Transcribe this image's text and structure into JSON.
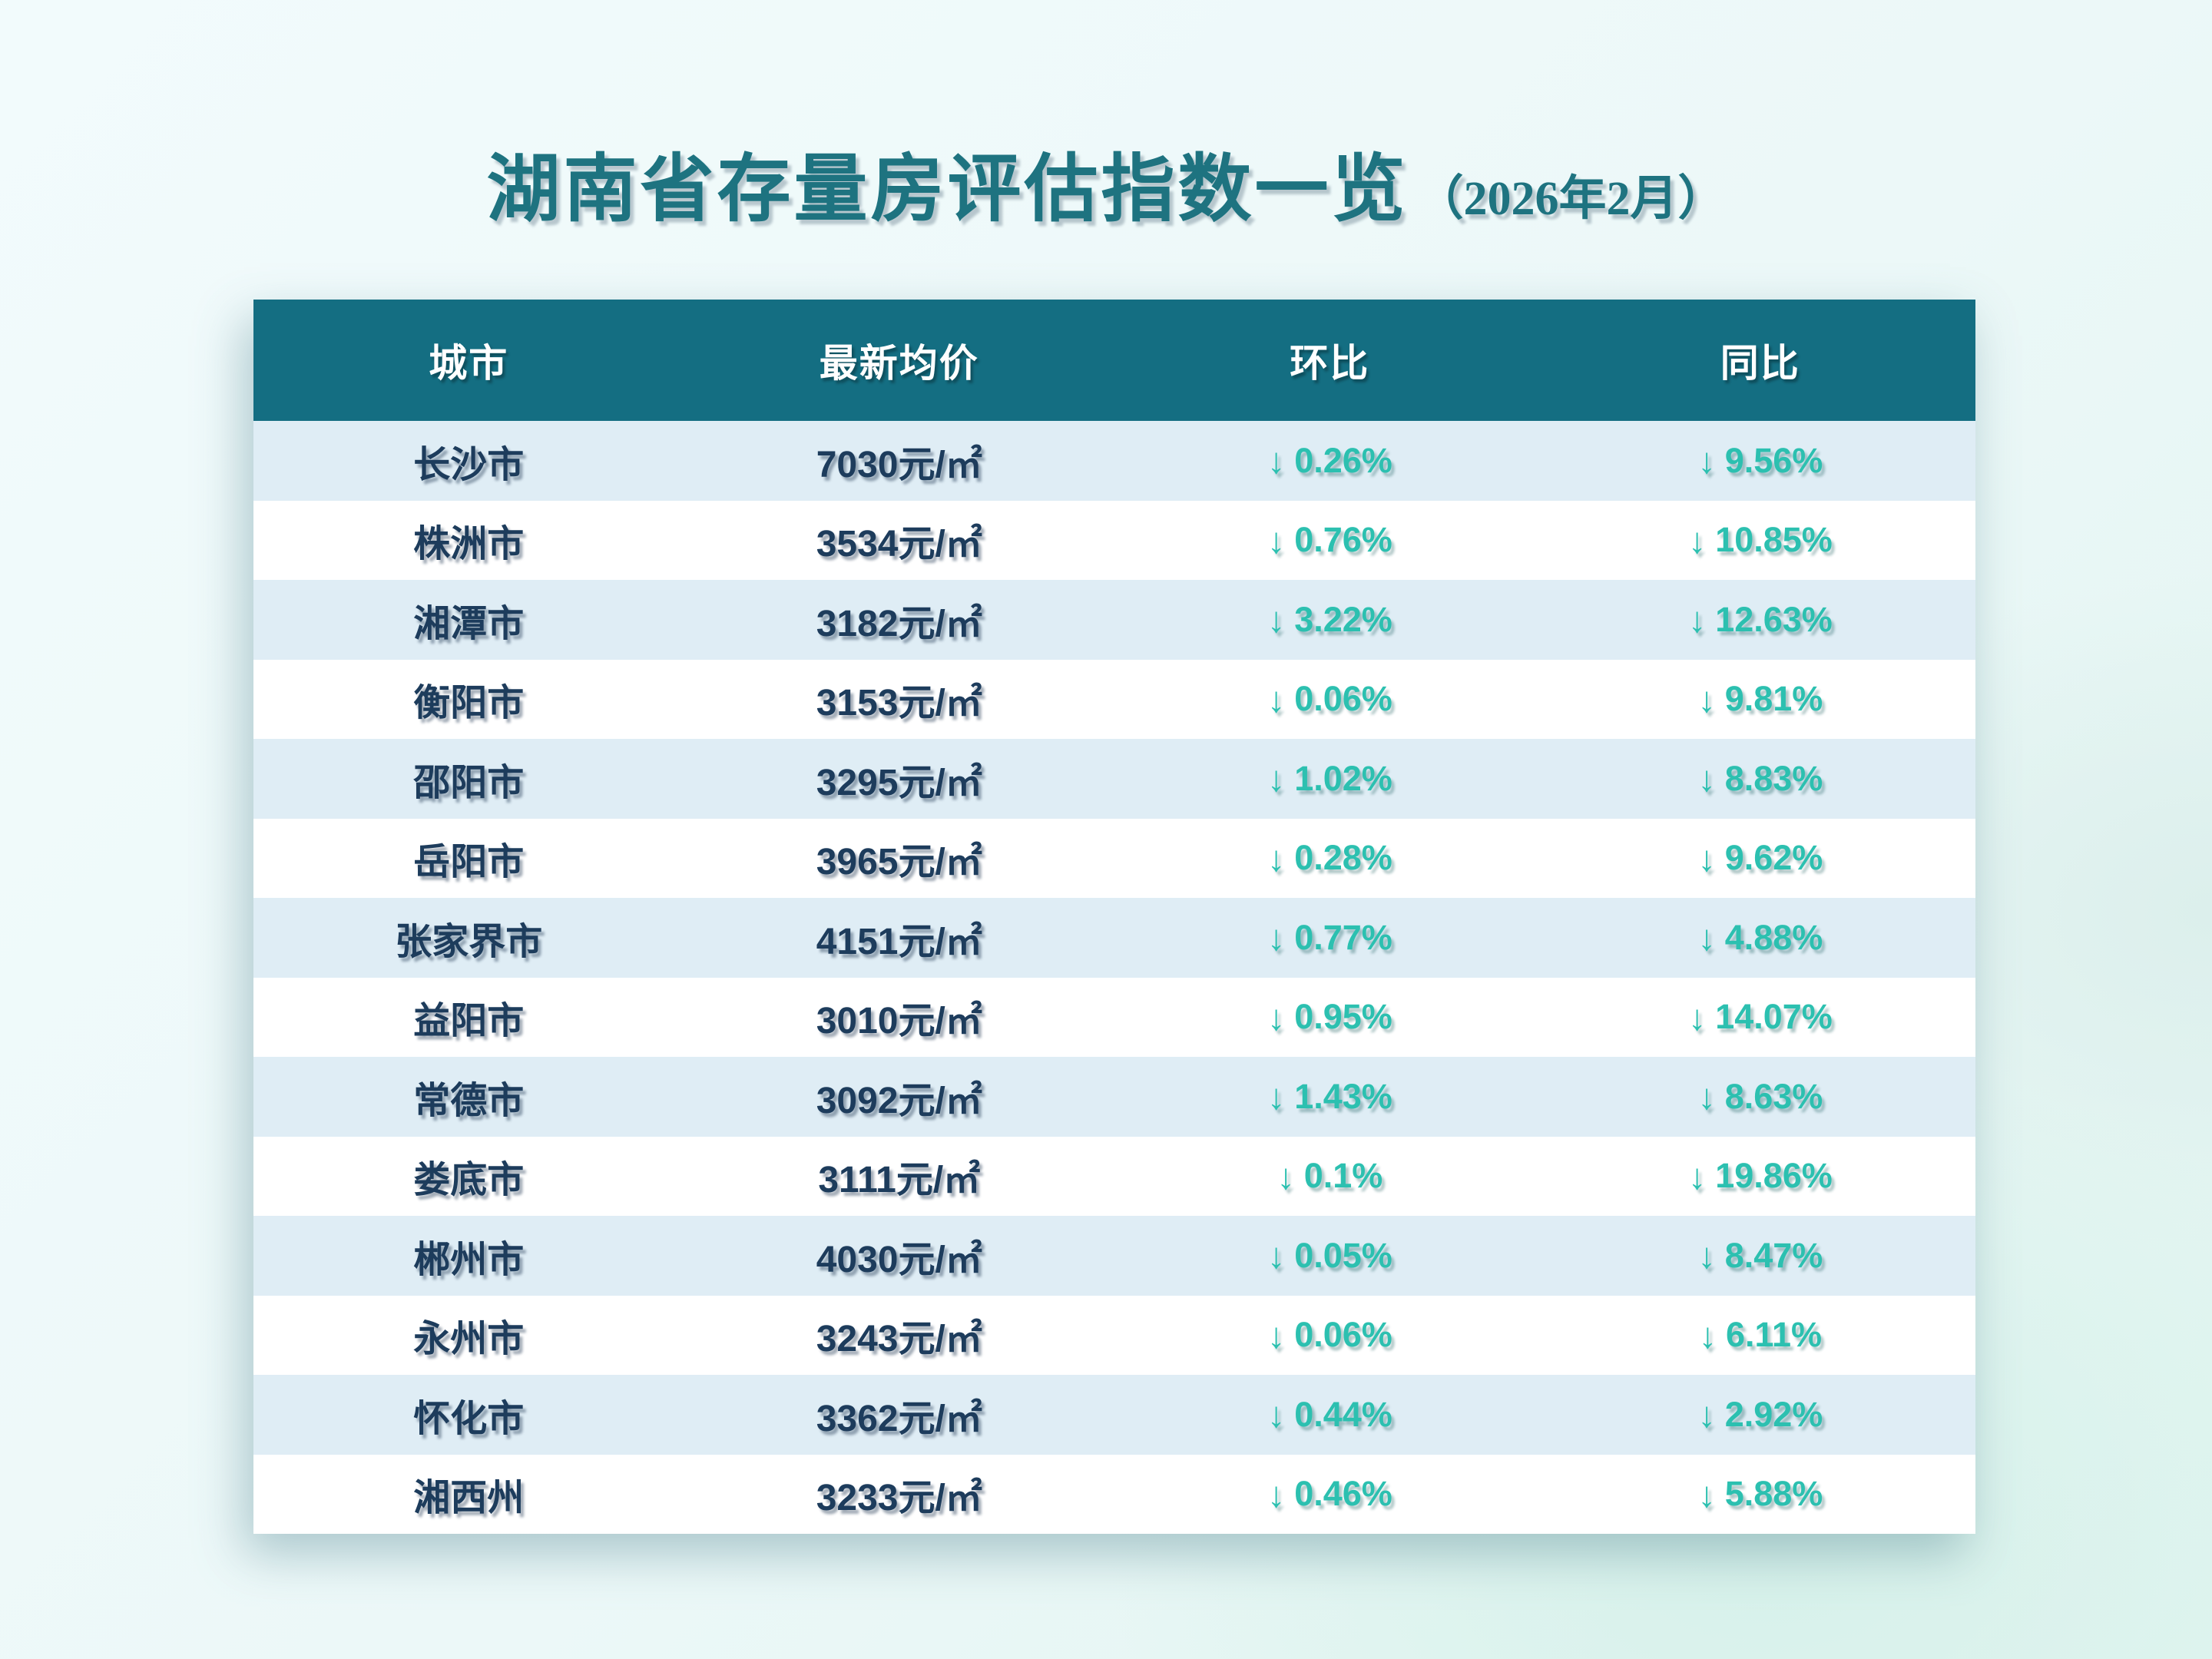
{
  "title": {
    "main": "湖南省存量房评估指数一览",
    "date": "（2026年2月）"
  },
  "chart_data": {
    "type": "table",
    "title": "湖南省存量房评估指数一览（2026年2月）",
    "columns": [
      "城市",
      "最新均价",
      "环比",
      "同比"
    ],
    "arrow": "↓",
    "rows": [
      {
        "city": "长沙市",
        "price": "7030元/㎡",
        "mom": "0.26%",
        "yoy": "9.56%"
      },
      {
        "city": "株洲市",
        "price": "3534元/㎡",
        "mom": "0.76%",
        "yoy": "10.85%"
      },
      {
        "city": "湘潭市",
        "price": "3182元/㎡",
        "mom": "3.22%",
        "yoy": "12.63%"
      },
      {
        "city": "衡阳市",
        "price": "3153元/㎡",
        "mom": "0.06%",
        "yoy": "9.81%"
      },
      {
        "city": "邵阳市",
        "price": "3295元/㎡",
        "mom": "1.02%",
        "yoy": "8.83%"
      },
      {
        "city": "岳阳市",
        "price": "3965元/㎡",
        "mom": "0.28%",
        "yoy": "9.62%"
      },
      {
        "city": "张家界市",
        "price": "4151元/㎡",
        "mom": "0.77%",
        "yoy": "4.88%"
      },
      {
        "city": "益阳市",
        "price": "3010元/㎡",
        "mom": "0.95%",
        "yoy": "14.07%"
      },
      {
        "city": "常德市",
        "price": "3092元/㎡",
        "mom": "1.43%",
        "yoy": "8.63%"
      },
      {
        "city": "娄底市",
        "price": "3111元/㎡",
        "mom": "0.1%",
        "yoy": "19.86%"
      },
      {
        "city": "郴州市",
        "price": "4030元/㎡",
        "mom": "0.05%",
        "yoy": "8.47%"
      },
      {
        "city": "永州市",
        "price": "3243元/㎡",
        "mom": "0.06%",
        "yoy": "6.11%"
      },
      {
        "city": "怀化市",
        "price": "3362元/㎡",
        "mom": "0.44%",
        "yoy": "2.92%"
      },
      {
        "city": "湘西州",
        "price": "3233元/㎡",
        "mom": "0.46%",
        "yoy": "5.88%"
      }
    ]
  },
  "colors": {
    "page_bg_start": "#f2fbfc",
    "page_bg_end": "#e0f4ef",
    "title_text": "#1e7380",
    "header_bg": "#146e82",
    "header_text": "#ffffff",
    "row_bg": "#ffffff",
    "row_alt_bg": "#dfedf5",
    "dark_text": "#1d3c5c",
    "percent_text": "#2cc0b0"
  }
}
